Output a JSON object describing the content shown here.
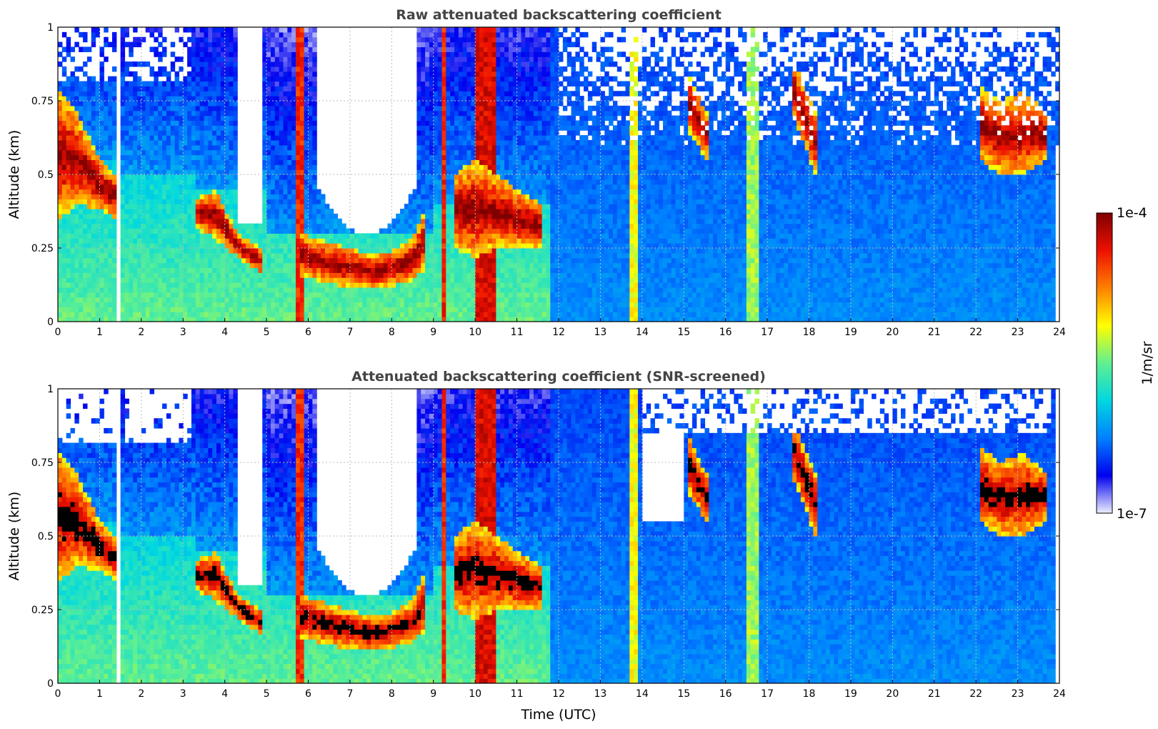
{
  "chart_data": [
    {
      "type": "heatmap",
      "title": "Raw attenuated backscattering coefficient",
      "xlabel": "",
      "ylabel": "Altitude (km)",
      "xlim": [
        0,
        24
      ],
      "ylim": [
        0,
        1
      ],
      "x_ticks": [
        "0",
        "1",
        "2",
        "3",
        "4",
        "5",
        "6",
        "7",
        "8",
        "9",
        "10",
        "11",
        "12",
        "13",
        "14",
        "15",
        "16",
        "17",
        "18",
        "19",
        "20",
        "21",
        "22",
        "23",
        "24"
      ],
      "y_ticks": [
        "0",
        "0.25",
        "0.5",
        "0.75",
        "1"
      ],
      "grid": true,
      "screened": false,
      "layers": [
        {
          "name": "",
          "x": [
            0.0,
            0.5,
            1.0,
            1.4
          ],
          "top": [
            0.8,
            0.7,
            0.55,
            0.5
          ],
          "bottom": [
            0.35,
            0.4,
            0.38,
            0.35
          ]
        },
        {
          "name": "",
          "x": [
            3.3,
            3.8,
            4.3,
            4.9
          ],
          "top": [
            0.42,
            0.45,
            0.3,
            0.25
          ],
          "bottom": [
            0.32,
            0.28,
            0.22,
            0.16
          ]
        },
        {
          "name": "",
          "x": [
            5.8,
            6.5,
            7.0,
            7.5,
            8.0,
            8.5,
            8.8
          ],
          "top": [
            0.3,
            0.27,
            0.25,
            0.23,
            0.24,
            0.28,
            0.38
          ],
          "bottom": [
            0.16,
            0.13,
            0.12,
            0.11,
            0.12,
            0.14,
            0.18
          ]
        },
        {
          "name": "",
          "x": [
            9.5,
            10.0,
            10.5,
            11.0,
            11.6
          ],
          "top": [
            0.5,
            0.55,
            0.5,
            0.45,
            0.4
          ],
          "bottom": [
            0.25,
            0.22,
            0.25,
            0.25,
            0.25
          ]
        },
        {
          "name": "",
          "x": [
            15.1,
            15.4,
            15.6
          ],
          "top": [
            0.85,
            0.75,
            0.7
          ],
          "bottom": [
            0.65,
            0.58,
            0.55
          ]
        },
        {
          "name": "",
          "x": [
            17.6,
            17.9,
            18.2
          ],
          "top": [
            0.9,
            0.8,
            0.7
          ],
          "bottom": [
            0.7,
            0.6,
            0.48
          ]
        },
        {
          "name": "",
          "x": [
            22.1,
            22.6,
            23.1,
            23.7
          ],
          "top": [
            0.8,
            0.75,
            0.78,
            0.72
          ],
          "bottom": [
            0.55,
            0.5,
            0.5,
            0.55
          ]
        }
      ]
    },
    {
      "type": "heatmap",
      "title": "Attenuated backscattering coefficient (SNR-screened)",
      "xlabel": "Time (UTC)",
      "ylabel": "Altitude (km)",
      "xlim": [
        0,
        24
      ],
      "ylim": [
        0,
        1
      ],
      "x_ticks": [
        "0",
        "1",
        "2",
        "3",
        "4",
        "5",
        "6",
        "7",
        "8",
        "9",
        "10",
        "11",
        "12",
        "13",
        "14",
        "15",
        "16",
        "17",
        "18",
        "19",
        "20",
        "21",
        "22",
        "23",
        "24"
      ],
      "y_ticks": [
        "0",
        "0.25",
        "0.5",
        "0.75",
        "1"
      ],
      "grid": true,
      "screened": true,
      "layers": [
        {
          "name": "",
          "x": [
            0.0,
            0.5,
            1.0,
            1.4
          ],
          "top": [
            0.8,
            0.7,
            0.55,
            0.5
          ],
          "bottom": [
            0.35,
            0.4,
            0.38,
            0.35
          ]
        },
        {
          "name": "",
          "x": [
            3.3,
            3.8,
            4.3,
            4.9
          ],
          "top": [
            0.42,
            0.45,
            0.3,
            0.25
          ],
          "bottom": [
            0.32,
            0.28,
            0.22,
            0.16
          ]
        },
        {
          "name": "",
          "x": [
            5.8,
            6.5,
            7.0,
            7.5,
            8.0,
            8.5,
            8.8
          ],
          "top": [
            0.3,
            0.27,
            0.25,
            0.23,
            0.24,
            0.28,
            0.38
          ],
          "bottom": [
            0.16,
            0.13,
            0.12,
            0.11,
            0.12,
            0.14,
            0.18
          ]
        },
        {
          "name": "",
          "x": [
            9.5,
            10.0,
            10.5,
            11.0,
            11.6
          ],
          "top": [
            0.5,
            0.55,
            0.5,
            0.45,
            0.4
          ],
          "bottom": [
            0.25,
            0.22,
            0.25,
            0.25,
            0.25
          ]
        },
        {
          "name": "",
          "x": [
            15.1,
            15.4,
            15.6
          ],
          "top": [
            0.85,
            0.75,
            0.7
          ],
          "bottom": [
            0.65,
            0.58,
            0.55
          ]
        },
        {
          "name": "",
          "x": [
            17.6,
            17.9,
            18.2
          ],
          "top": [
            0.9,
            0.8,
            0.7
          ],
          "bottom": [
            0.7,
            0.6,
            0.48
          ]
        },
        {
          "name": "",
          "x": [
            22.1,
            22.6,
            23.1,
            23.7
          ],
          "top": [
            0.8,
            0.75,
            0.78,
            0.72
          ],
          "bottom": [
            0.55,
            0.5,
            0.5,
            0.55
          ]
        }
      ]
    }
  ],
  "colorbar": {
    "label": "1/m/sr",
    "max_label": "1e-4",
    "min_label": "1e-7",
    "min": 1e-07,
    "max": 0.0001,
    "scale": "log",
    "colors": [
      "#eeeeff",
      "#0000ee",
      "#0080ff",
      "#00d8e0",
      "#60f090",
      "#ffff00",
      "#ff8000",
      "#ee1000",
      "#800000"
    ]
  },
  "colors": {
    "dense_layer_screened": "#000000",
    "background_missing": "#ffffff"
  }
}
